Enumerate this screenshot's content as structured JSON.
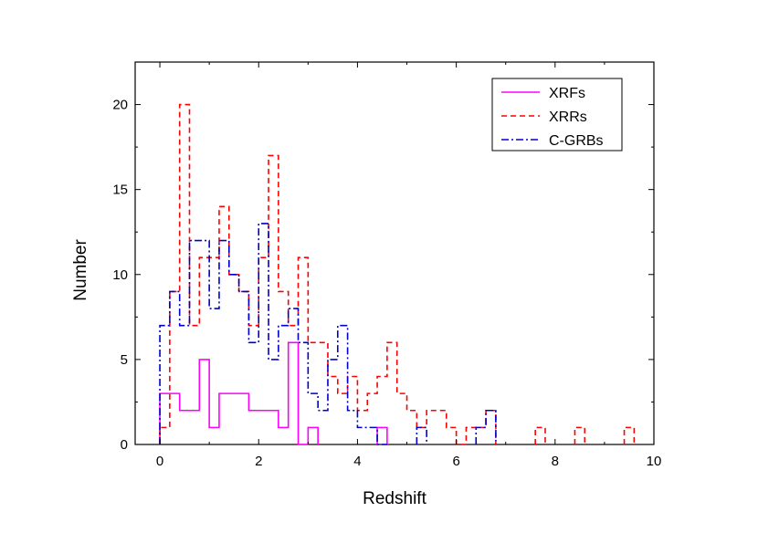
{
  "chart_data": {
    "type": "histogram-step",
    "xlabel": "Redshift",
    "ylabel": "Number",
    "xlim": [
      -0.5,
      10
    ],
    "ylim": [
      0,
      22.5
    ],
    "xticks": [
      0,
      2,
      4,
      6,
      8,
      10
    ],
    "yticks": [
      0,
      5,
      10,
      15,
      20
    ],
    "grid": false,
    "legend_position": "top-right",
    "bin_width": 0.2,
    "series": [
      {
        "name": "XRFs",
        "color": "#ff00ff",
        "dash": "solid",
        "bins": [
          {
            "x": 0.1,
            "y": 3
          },
          {
            "x": 0.3,
            "y": 3
          },
          {
            "x": 0.5,
            "y": 2
          },
          {
            "x": 0.7,
            "y": 2
          },
          {
            "x": 0.9,
            "y": 5
          },
          {
            "x": 1.1,
            "y": 1
          },
          {
            "x": 1.3,
            "y": 3
          },
          {
            "x": 1.5,
            "y": 3
          },
          {
            "x": 1.7,
            "y": 3
          },
          {
            "x": 1.9,
            "y": 2
          },
          {
            "x": 2.1,
            "y": 2
          },
          {
            "x": 2.3,
            "y": 2
          },
          {
            "x": 2.5,
            "y": 1
          },
          {
            "x": 2.7,
            "y": 6
          },
          {
            "x": 2.9,
            "y": 0
          },
          {
            "x": 3.1,
            "y": 1
          },
          {
            "x": 4.5,
            "y": 1
          }
        ]
      },
      {
        "name": "XRRs",
        "color": "#ff0000",
        "dash": "dashed",
        "bins": [
          {
            "x": 0.1,
            "y": 1
          },
          {
            "x": 0.3,
            "y": 9
          },
          {
            "x": 0.5,
            "y": 20
          },
          {
            "x": 0.7,
            "y": 7
          },
          {
            "x": 0.9,
            "y": 11
          },
          {
            "x": 1.1,
            "y": 11
          },
          {
            "x": 1.3,
            "y": 14
          },
          {
            "x": 1.5,
            "y": 10
          },
          {
            "x": 1.7,
            "y": 9
          },
          {
            "x": 1.9,
            "y": 7
          },
          {
            "x": 2.1,
            "y": 11
          },
          {
            "x": 2.3,
            "y": 17
          },
          {
            "x": 2.5,
            "y": 9
          },
          {
            "x": 2.7,
            "y": 7
          },
          {
            "x": 2.9,
            "y": 11
          },
          {
            "x": 3.1,
            "y": 6
          },
          {
            "x": 3.3,
            "y": 6
          },
          {
            "x": 3.5,
            "y": 4
          },
          {
            "x": 3.7,
            "y": 3
          },
          {
            "x": 3.9,
            "y": 4
          },
          {
            "x": 4.1,
            "y": 2
          },
          {
            "x": 4.3,
            "y": 3
          },
          {
            "x": 4.5,
            "y": 4
          },
          {
            "x": 4.7,
            "y": 6
          },
          {
            "x": 4.9,
            "y": 3
          },
          {
            "x": 5.1,
            "y": 2
          },
          {
            "x": 5.3,
            "y": 1
          },
          {
            "x": 5.5,
            "y": 2
          },
          {
            "x": 5.7,
            "y": 2
          },
          {
            "x": 5.9,
            "y": 1
          },
          {
            "x": 6.1,
            "y": 0
          },
          {
            "x": 6.3,
            "y": 1
          },
          {
            "x": 6.5,
            "y": 1
          },
          {
            "x": 6.7,
            "y": 2
          },
          {
            "x": 7.7,
            "y": 1
          },
          {
            "x": 8.5,
            "y": 1
          },
          {
            "x": 9.5,
            "y": 1
          }
        ]
      },
      {
        "name": "C-GRBs",
        "color": "#0000cc",
        "dash": "dashdot",
        "bins": [
          {
            "x": 0.1,
            "y": 7
          },
          {
            "x": 0.3,
            "y": 9
          },
          {
            "x": 0.5,
            "y": 7
          },
          {
            "x": 0.7,
            "y": 12
          },
          {
            "x": 0.9,
            "y": 12
          },
          {
            "x": 1.1,
            "y": 8
          },
          {
            "x": 1.3,
            "y": 12
          },
          {
            "x": 1.5,
            "y": 10
          },
          {
            "x": 1.7,
            "y": 9
          },
          {
            "x": 1.9,
            "y": 6
          },
          {
            "x": 2.1,
            "y": 13
          },
          {
            "x": 2.3,
            "y": 5
          },
          {
            "x": 2.5,
            "y": 7
          },
          {
            "x": 2.7,
            "y": 8
          },
          {
            "x": 2.9,
            "y": 6
          },
          {
            "x": 3.1,
            "y": 3
          },
          {
            "x": 3.3,
            "y": 2
          },
          {
            "x": 3.5,
            "y": 5
          },
          {
            "x": 3.7,
            "y": 7
          },
          {
            "x": 3.9,
            "y": 2
          },
          {
            "x": 4.1,
            "y": 1
          },
          {
            "x": 4.3,
            "y": 1
          },
          {
            "x": 4.5,
            "y": 0
          },
          {
            "x": 5.3,
            "y": 1
          },
          {
            "x": 6.5,
            "y": 1
          },
          {
            "x": 6.7,
            "y": 2
          }
        ]
      }
    ]
  }
}
